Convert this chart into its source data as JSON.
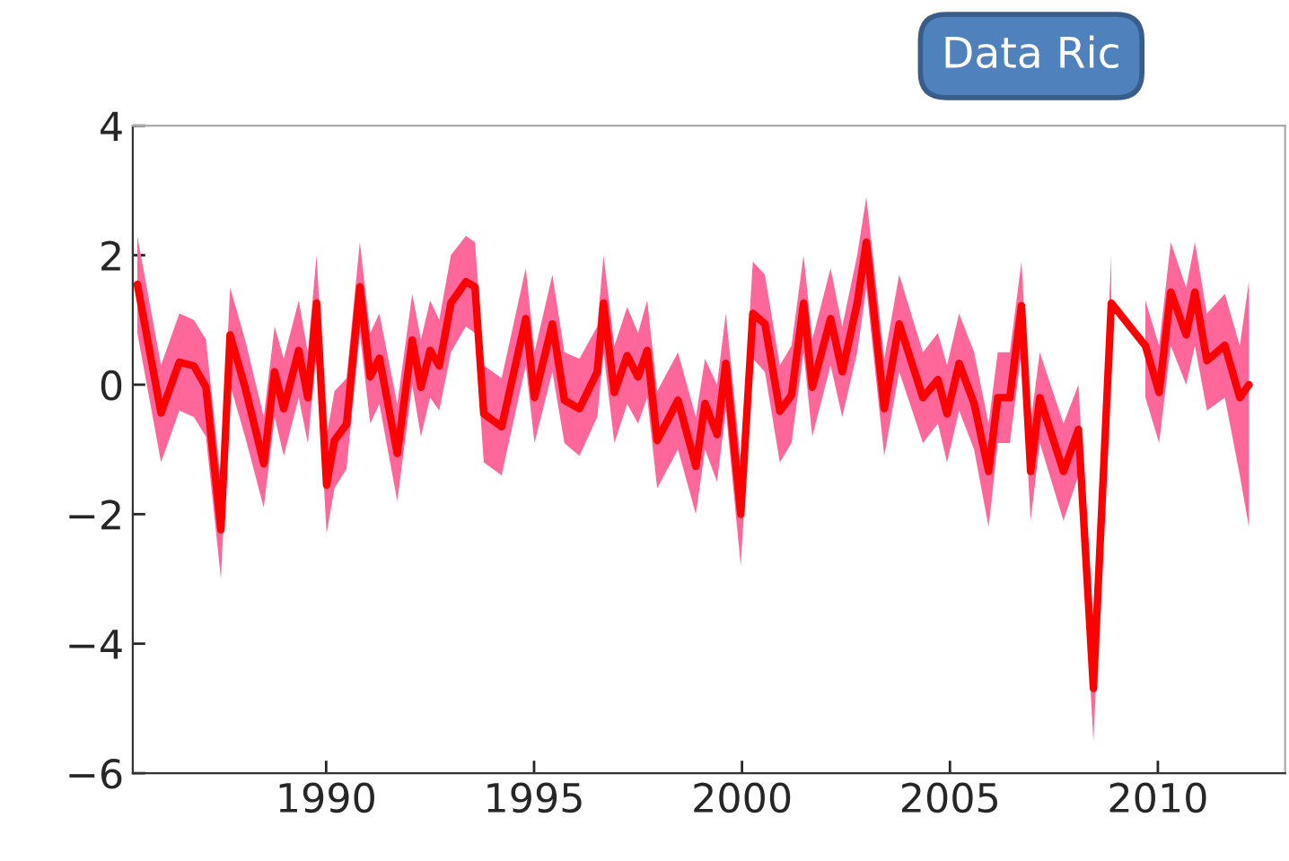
{
  "chart_data": {
    "type": "line",
    "x": [
      1985.46,
      1986.03,
      1986.47,
      1986.82,
      1987.11,
      1987.47,
      1987.69,
      1988.05,
      1988.5,
      1988.76,
      1988.98,
      1989.34,
      1989.56,
      1989.77,
      1990.01,
      1990.2,
      1990.49,
      1990.81,
      1991.06,
      1991.28,
      1991.71,
      1992.07,
      1992.28,
      1992.5,
      1992.72,
      1993.0,
      1993.36,
      1993.58,
      1993.79,
      1994.22,
      1994.8,
      1995.01,
      1995.44,
      1995.73,
      1996.09,
      1996.52,
      1996.67,
      1996.93,
      1997.24,
      1997.5,
      1997.72,
      1997.96,
      1998.46,
      1998.89,
      1999.11,
      1999.4,
      1999.61,
      1999.97,
      2000.26,
      2000.55,
      2000.91,
      2001.19,
      2001.48,
      2001.69,
      2002.13,
      2002.41,
      2002.77,
      2002.99,
      2003.42,
      2003.78,
      2004.35,
      2004.71,
      2004.93,
      2005.22,
      2005.58,
      2005.93,
      2006.15,
      2006.44,
      2006.72,
      2006.94,
      2007.16,
      2007.73,
      2008.09,
      2008.45,
      2008.88,
      2009.3,
      2009.7,
      2010.03,
      2010.31,
      2010.68,
      2010.89,
      2011.18,
      2011.61,
      2011.97,
      2012.19
    ],
    "series": [
      {
        "color": "#ff0000",
        "values": [
          1.55,
          -0.44,
          0.35,
          0.29,
          -0.04,
          -2.24,
          0.77,
          -0.04,
          -1.22,
          0.2,
          -0.37,
          0.53,
          -0.2,
          1.26,
          -1.55,
          -0.86,
          -0.61,
          1.51,
          0.12,
          0.41,
          -1.06,
          0.69,
          -0.04,
          0.53,
          0.29,
          1.26,
          1.59,
          1.51,
          -0.45,
          -0.65,
          1.02,
          -0.2,
          0.94,
          -0.24,
          -0.37,
          0.2,
          1.26,
          -0.12,
          0.45,
          0.12,
          0.53,
          -0.86,
          -0.24,
          -1.26,
          -0.29,
          -0.77,
          0.33,
          -2.0,
          1.1,
          0.94,
          -0.41,
          -0.16,
          1.26,
          -0.04,
          1.02,
          0.2,
          1.26,
          2.2,
          -0.37,
          0.94,
          -0.2,
          0.08,
          -0.45,
          0.33,
          -0.29,
          -1.34,
          -0.2,
          -0.2,
          1.22,
          -1.34,
          -0.2,
          -1.34,
          -0.69,
          -4.69,
          1.26,
          null,
          0.6,
          -0.12,
          1.43,
          0.77,
          1.43,
          0.37,
          0.61,
          -0.2,
          0.0
        ],
        "lower": [
          0.8,
          -1.2,
          -0.4,
          -0.5,
          -0.8,
          -3.0,
          0.0,
          -0.8,
          -1.9,
          -0.5,
          -1.1,
          -0.2,
          -0.9,
          0.5,
          -2.3,
          -1.6,
          -1.3,
          0.8,
          -0.6,
          -0.3,
          -1.8,
          0.0,
          -0.8,
          -0.2,
          -0.4,
          0.5,
          0.9,
          0.8,
          -1.2,
          -1.4,
          0.3,
          -0.9,
          0.2,
          -0.9,
          -1.1,
          -0.5,
          0.5,
          -0.9,
          -0.3,
          -0.6,
          -0.2,
          -1.6,
          -1.0,
          -2.0,
          -1.0,
          -1.5,
          -0.4,
          -2.8,
          0.4,
          0.2,
          -1.2,
          -0.9,
          0.5,
          -0.8,
          0.3,
          -0.5,
          0.5,
          1.5,
          -1.1,
          0.2,
          -0.9,
          -0.6,
          -1.2,
          -0.4,
          -1.0,
          -2.2,
          -0.9,
          -0.9,
          0.5,
          -2.1,
          -0.9,
          -2.1,
          -1.4,
          -5.5,
          0.5,
          null,
          -0.2,
          -0.9,
          0.6,
          0.0,
          0.6,
          -0.4,
          -0.2,
          -1.4,
          -2.2
        ],
        "upper": [
          2.3,
          0.3,
          1.1,
          1.0,
          0.7,
          -1.5,
          1.5,
          0.7,
          -0.5,
          0.9,
          0.4,
          1.3,
          0.5,
          2.0,
          -0.8,
          -0.1,
          0.1,
          2.2,
          0.8,
          1.1,
          -0.3,
          1.4,
          0.7,
          1.3,
          1.0,
          2.0,
          2.3,
          2.2,
          0.3,
          0.1,
          1.8,
          0.5,
          1.7,
          0.5,
          0.4,
          0.9,
          2.0,
          0.6,
          1.2,
          0.8,
          1.3,
          -0.1,
          0.5,
          -0.5,
          0.4,
          0.0,
          1.1,
          -1.2,
          1.9,
          1.7,
          0.3,
          0.6,
          2.0,
          0.7,
          1.8,
          0.9,
          2.0,
          2.9,
          0.4,
          1.7,
          0.5,
          0.8,
          0.3,
          1.1,
          0.5,
          -0.6,
          0.5,
          0.5,
          1.9,
          -0.6,
          0.5,
          -0.6,
          0.0,
          -4.0,
          2.0,
          null,
          1.3,
          0.6,
          2.2,
          1.5,
          2.2,
          1.1,
          1.4,
          0.6,
          1.6
        ]
      }
    ],
    "xlim": [
      1985.35,
      2013.06
    ],
    "xticks": [
      1990,
      1995,
      2000,
      2005,
      2010
    ],
    "ylim": [
      -6,
      4
    ],
    "yticks": [
      {
        "value": -6,
        "label": "−6"
      },
      {
        "value": -4,
        "label": "−4"
      },
      {
        "value": -2,
        "label": "−2"
      },
      0,
      2,
      4
    ],
    "grid": false,
    "legend": false,
    "annotations": [
      "Data Ric"
    ]
  }
}
